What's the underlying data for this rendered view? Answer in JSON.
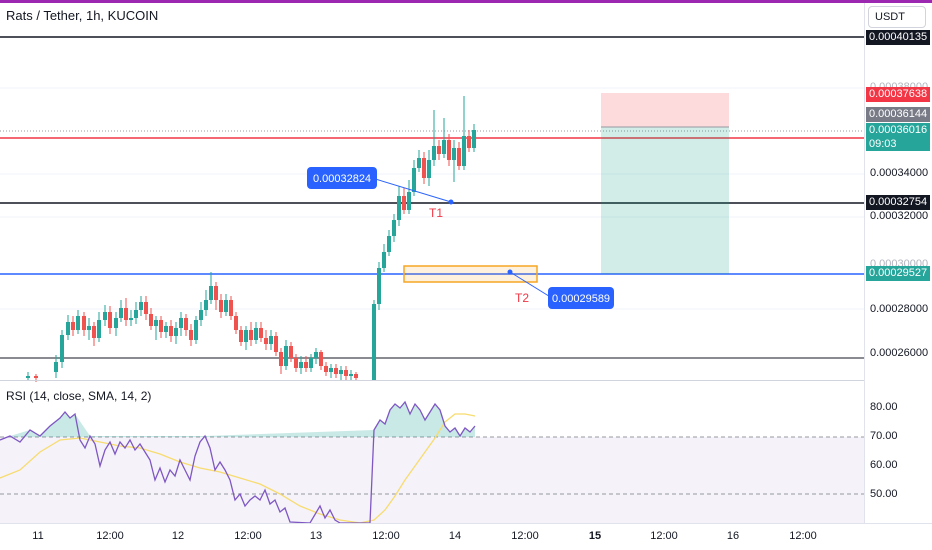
{
  "header": {
    "title": "Rats / Tether, 1h, KUCOIN",
    "currency": "USDT"
  },
  "price_axis": {
    "ticks": [
      "0.00038000",
      "0.00034000",
      "0.00032000",
      "0.00030000",
      "0.00028000",
      "0.00026000"
    ],
    "labels": {
      "top_line": "0.00040135",
      "stop": "0.00037638",
      "gray": "0.00036144",
      "current": "0.00036016",
      "countdown": "09:03",
      "t1_line": "0.00032754",
      "t2_line": "0.00029527"
    }
  },
  "annotations": {
    "callout_t1": "0.00032824",
    "callout_t2": "0.00029589",
    "t1_label": "T1",
    "t2_label": "T2"
  },
  "time_axis": {
    "ticks": [
      "11",
      "12:00",
      "12",
      "12:00",
      "13",
      "12:00",
      "14",
      "12:00",
      "15",
      "12:00",
      "16",
      "12:00"
    ]
  },
  "rsi": {
    "title": "RSI (14, close, SMA, 14, 2)",
    "ticks": [
      "80.00",
      "70.00",
      "60.00",
      "50.00"
    ]
  },
  "colors": {
    "up": "#26a69a",
    "down": "#ef5350",
    "blue": "#2962ff",
    "purple": "#9c27b0",
    "orange": "#f5a623",
    "rsi_line": "#7e57c2",
    "rsi_sma": "#f7dc6f"
  }
}
